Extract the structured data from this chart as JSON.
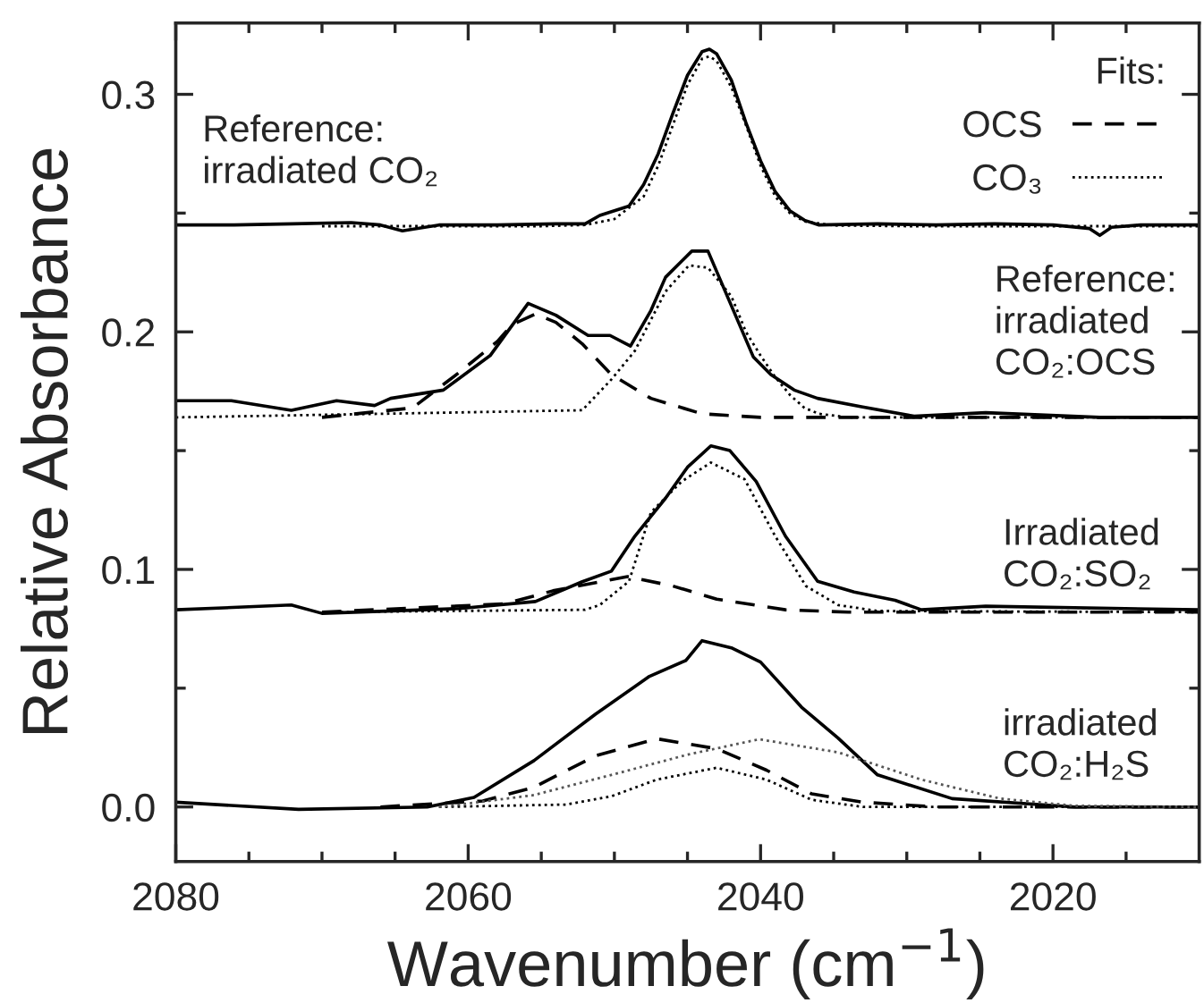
{
  "chart_data": {
    "type": "line",
    "xlabel": "Wavenumber (cm$^{−1}$)",
    "ylabel": "Relative Absorbance",
    "xlim": [
      2080,
      2010
    ],
    "ylim": [
      -0.023,
      0.33
    ],
    "xticks": [
      2080,
      {
        "value": 2075,
        "label": null
      },
      {
        "value": 2070,
        "label": null
      },
      {
        "value": 2065,
        "label": null
      },
      2060,
      {
        "value": 2055,
        "label": null
      },
      {
        "value": 2050,
        "label": null
      },
      {
        "value": 2045,
        "label": null
      },
      2040,
      {
        "value": 2035,
        "label": null
      },
      {
        "value": 2030,
        "label": null
      },
      {
        "value": 2025,
        "label": null
      },
      2020,
      {
        "value": 2015,
        "label": null
      }
    ],
    "yticks": [
      {
        "value": 0,
        "label": "0.0"
      },
      {
        "value": 0.05,
        "label": null
      },
      0.1,
      {
        "value": 0.15,
        "label": null
      },
      0.2,
      {
        "value": 0.25,
        "label": null
      },
      0.3
    ],
    "grid": false,
    "legend": "top right",
    "legend_title": "Fits:",
    "marker": "none",
    "annotations": [
      "Reference:\nirradiated CO₂",
      "Reference:\nirradiated\nCO₂:OCS",
      "Irradiated\nCO₂:SO₂",
      "irradiated\nCO₂:H₂S"
    ],
    "series": [
      {
        "color": "#000000",
        "line_style": "solid",
        "x": [
          2080,
          2076,
          2072,
          2068,
          2066,
          2064.5,
          2062,
          2058,
          2054,
          2052,
          2051,
          2050,
          2049,
          2048,
          2047,
          2046,
          2045,
          2044,
          2043.5,
          2043,
          2042,
          2041,
          2040,
          2039,
          2038,
          2037,
          2036,
          2032,
          2028,
          2024,
          2020,
          2017.5,
          2016.8,
          2016,
          2014,
          2010
        ],
        "values": [
          0.245,
          0.245,
          0.2455,
          0.246,
          0.245,
          0.2425,
          0.245,
          0.245,
          0.2455,
          0.2455,
          0.249,
          0.251,
          0.253,
          0.262,
          0.275,
          0.292,
          0.308,
          0.318,
          0.319,
          0.317,
          0.306,
          0.288,
          0.272,
          0.259,
          0.251,
          0.247,
          0.245,
          0.2455,
          0.245,
          0.2455,
          0.245,
          0.2435,
          0.2406,
          0.244,
          0.245,
          0.245
        ]
      },
      {
        "color": "#000000",
        "line_style": "dotted",
        "x": [
          2070,
          2055,
          2052,
          2050,
          2048,
          2047,
          2046,
          2045,
          2044,
          2043.5,
          2043,
          2042,
          2041,
          2040,
          2039,
          2038,
          2037,
          2035,
          2030,
          2010
        ],
        "values": [
          0.2445,
          0.2445,
          0.245,
          0.2475,
          0.257,
          0.27,
          0.287,
          0.304,
          0.315,
          0.316,
          0.314,
          0.303,
          0.287,
          0.27,
          0.257,
          0.25,
          0.2465,
          0.2448,
          0.2445,
          0.2445
        ]
      },
      {
        "color": "#000000",
        "line_style": "solid",
        "x": [
          2080,
          2076.2,
          2072.1,
          2069,
          2066.4,
          2065.3,
          2061.7,
          2058.5,
          2055.9,
          2054,
          2051.8,
          2050.3,
          2048.9,
          2047.5,
          2046.5,
          2044.7,
          2043.6,
          2040.5,
          2039.3,
          2037.7,
          2036.1,
          2033.1,
          2029.5,
          2024.6,
          2016.8,
          2010
        ],
        "values": [
          0.171,
          0.171,
          0.167,
          0.171,
          0.169,
          0.172,
          0.1755,
          0.19,
          0.212,
          0.207,
          0.1985,
          0.1985,
          0.194,
          0.209,
          0.223,
          0.234,
          0.234,
          0.1895,
          0.182,
          0.1755,
          0.172,
          0.1685,
          0.1645,
          0.166,
          0.164,
          0.164
        ]
      },
      {
        "color": "#000000",
        "line_style": "dashed",
        "name": "OCS",
        "x": [
          2070,
          2063.8,
          2060.6,
          2058,
          2057,
          2055.4,
          2054,
          2052.2,
          2050.2,
          2047.5,
          2044,
          2040,
          2010
        ],
        "values": [
          0.164,
          0.168,
          0.183,
          0.196,
          0.203,
          0.2075,
          0.204,
          0.195,
          0.182,
          0.172,
          0.1655,
          0.164,
          0.164
        ]
      },
      {
        "color": "#000000",
        "line_style": "dotted",
        "name": "CO₃",
        "x": [
          2080,
          2052.2,
          2050.2,
          2048.6,
          2046.5,
          2044.9,
          2043.6,
          2042,
          2041,
          2040,
          2039,
          2038,
          2037,
          2036,
          2034,
          2010
        ],
        "values": [
          0.164,
          0.167,
          0.18,
          0.192,
          0.217,
          0.228,
          0.227,
          0.215,
          0.2,
          0.19,
          0.181,
          0.1735,
          0.168,
          0.1655,
          0.164,
          0.164
        ]
      },
      {
        "color": "#000000",
        "line_style": "solid",
        "x": [
          2080,
          2072.1,
          2070,
          2060.6,
          2055.4,
          2052.2,
          2050.2,
          2048.6,
          2046.5,
          2045,
          2043.4,
          2042.1,
          2040.3,
          2038.3,
          2036.1,
          2033.6,
          2030.8,
          2029,
          2024.6,
          2010
        ],
        "values": [
          0.083,
          0.085,
          0.0815,
          0.0835,
          0.0865,
          0.0948,
          0.0993,
          0.114,
          0.13,
          0.143,
          0.152,
          0.15,
          0.137,
          0.114,
          0.095,
          0.0905,
          0.087,
          0.083,
          0.0845,
          0.083
        ]
      },
      {
        "color": "#000000",
        "line_style": "dashed",
        "x": [
          2070,
          2057.5,
          2054.2,
          2049.1,
          2046,
          2043,
          2038.3,
          2034,
          2010
        ],
        "values": [
          0.082,
          0.0855,
          0.091,
          0.097,
          0.093,
          0.0875,
          0.083,
          0.082,
          0.082
        ]
      },
      {
        "color": "#000000",
        "line_style": "dotted",
        "x": [
          2070,
          2052,
          2051,
          2049,
          2047.5,
          2045.4,
          2043.4,
          2041.1,
          2039,
          2036.9,
          2034.7,
          2032,
          2010
        ],
        "values": [
          0.082,
          0.083,
          0.085,
          0.095,
          0.124,
          0.137,
          0.145,
          0.138,
          0.114,
          0.093,
          0.085,
          0.0825,
          0.082
        ]
      },
      {
        "color": "#000000",
        "line_style": "solid",
        "x": [
          2080,
          2071.6,
          2062.8,
          2059.6,
          2055.5,
          2051.3,
          2047.6,
          2045.1,
          2044,
          2042,
          2040,
          2037.2,
          2034.7,
          2032,
          2026.9,
          2018.5,
          2010
        ],
        "values": [
          0.002,
          -0.001,
          0.0,
          0.004,
          0.0195,
          0.039,
          0.055,
          0.0617,
          0.07,
          0.067,
          0.061,
          0.042,
          0.029,
          0.0135,
          0.0035,
          0.0,
          0.0
        ]
      },
      {
        "color": "#000000",
        "line_style": "dashed",
        "x": [
          2066,
          2059,
          2055.5,
          2051.3,
          2047.1,
          2043,
          2039.6,
          2036.5,
          2033,
          2028,
          2010
        ],
        "values": [
          0.0,
          0.0025,
          0.0083,
          0.0215,
          0.0287,
          0.0245,
          0.0155,
          0.0055,
          0.002,
          0.0,
          0.0
        ]
      },
      {
        "color": "#000000",
        "line_style": "dotted",
        "x": [
          2062,
          2053.3,
          2050.2,
          2047.1,
          2043,
          2039.6,
          2036.5,
          2033,
          2010
        ],
        "values": [
          0.0,
          0.001,
          0.0045,
          0.0115,
          0.0165,
          0.0115,
          0.003,
          0.0,
          0.0
        ]
      },
      {
        "color": "#555555",
        "line_style": "dotted",
        "x": [
          2062,
          2060.6,
          2055.5,
          2050.2,
          2045,
          2040.1,
          2034.7,
          2029,
          2023.6,
          2018.5,
          2010
        ],
        "values": [
          0.0,
          0.001,
          0.005,
          0.0135,
          0.022,
          0.0285,
          0.023,
          0.0115,
          0.0035,
          0.0005,
          0.0
        ]
      }
    ]
  }
}
